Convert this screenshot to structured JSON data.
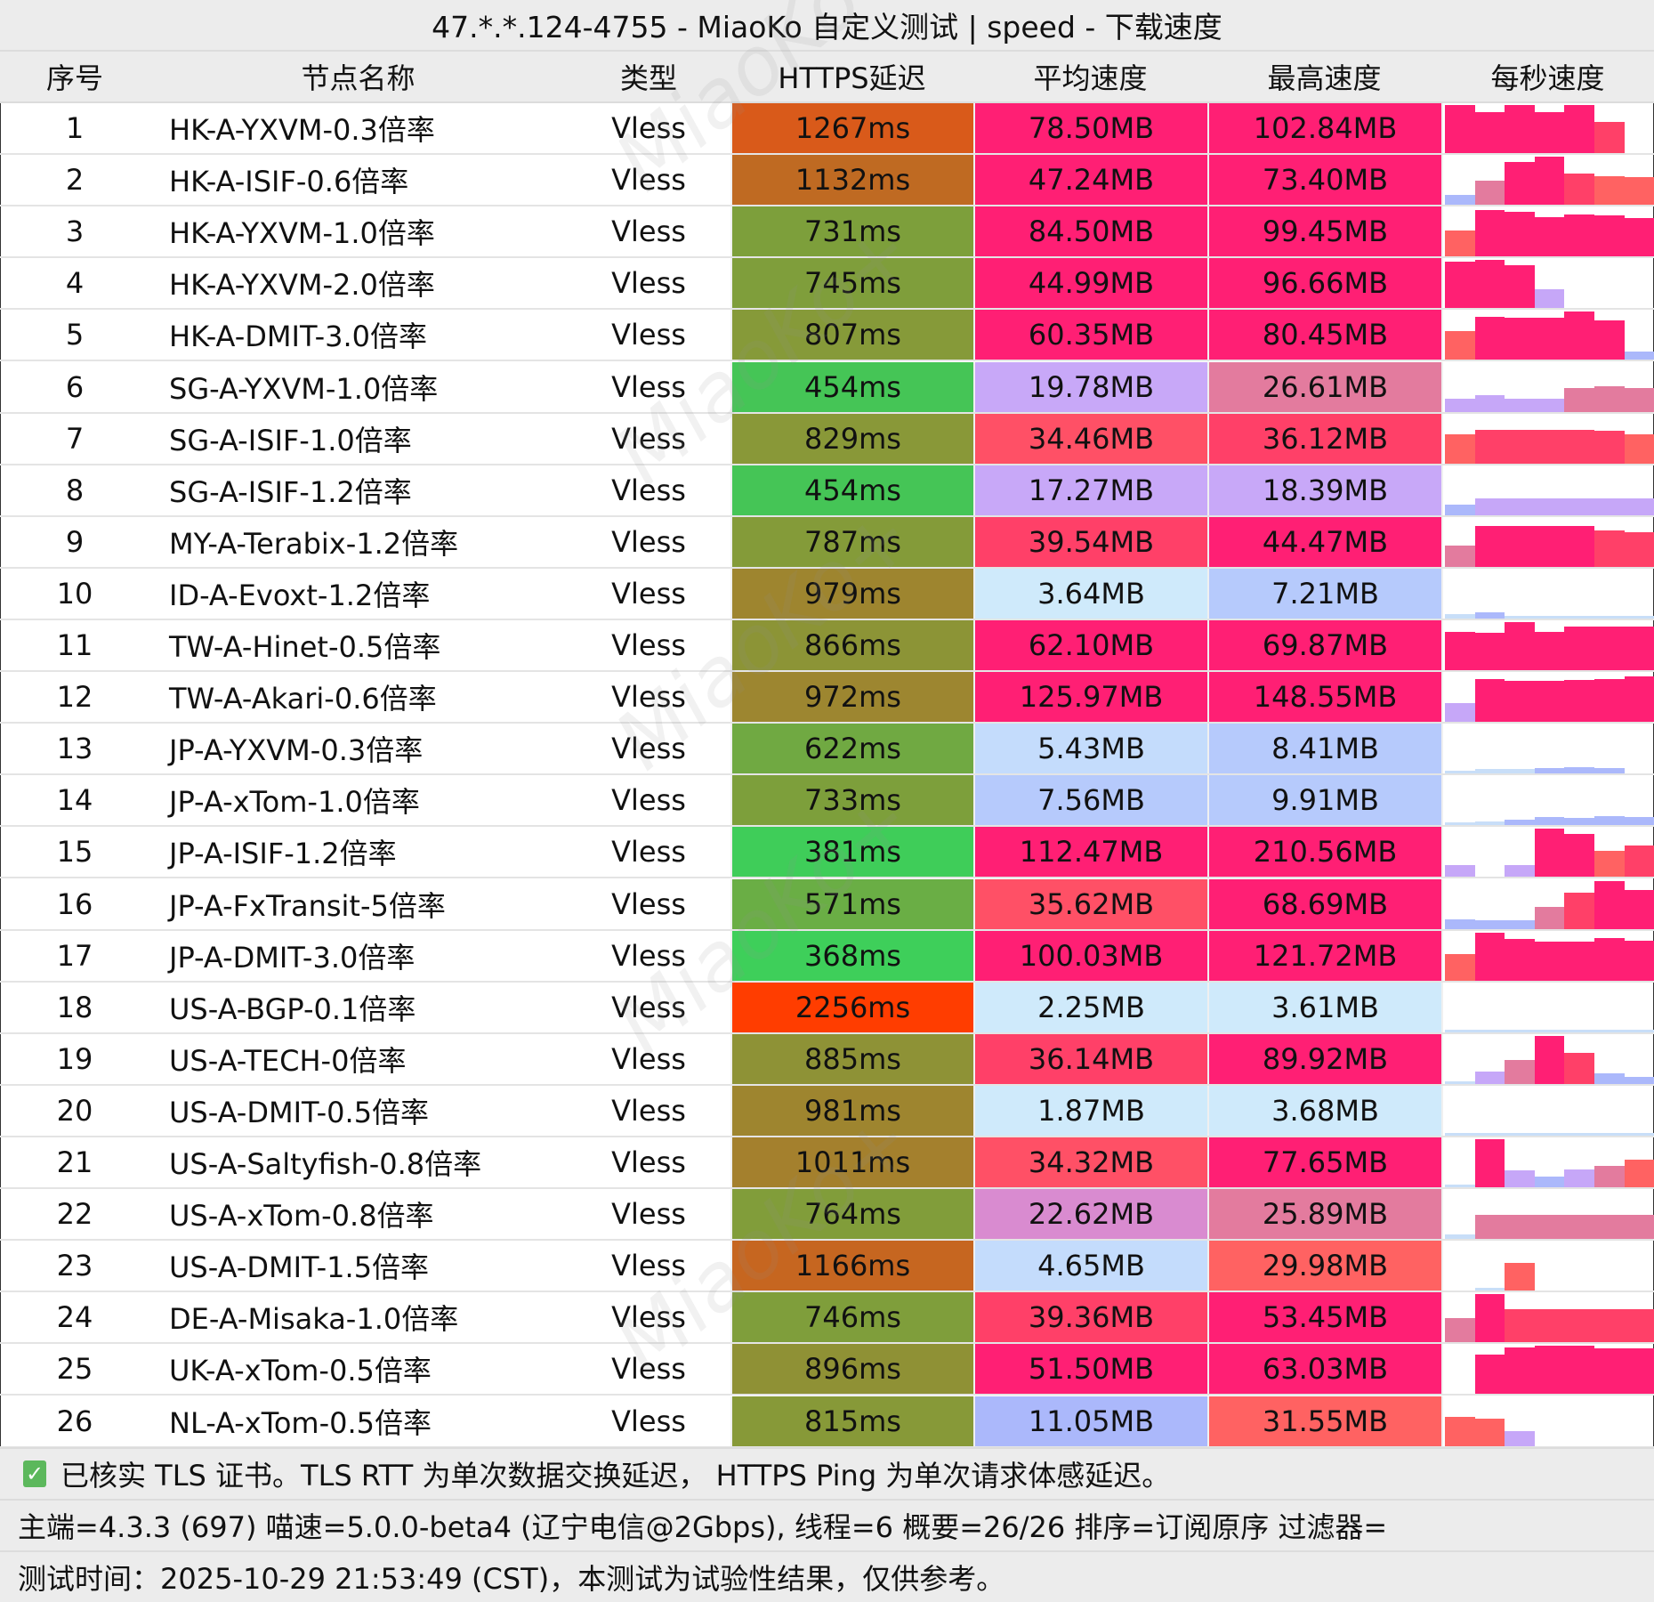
{
  "title": "47.*.*.124-4755 - MiaoKo 自定义测试 | speed - 下载速度",
  "watermark": "MiaoKo+",
  "headers": [
    "序号",
    "节点名称",
    "类型",
    "HTTPS延迟",
    "平均速度",
    "最高速度",
    "每秒速度"
  ],
  "rows": [
    {
      "idx": "1",
      "name": "HK-A-YXVM-0.3倍率",
      "type": "Vless",
      "latency": "1267ms",
      "avg": "78.50MB",
      "max": "102.84MB",
      "per_second": [
        1.0,
        0.86,
        1.0,
        0.86,
        1.0,
        0.65,
        0
      ]
    },
    {
      "idx": "2",
      "name": "HK-A-ISIF-0.6倍率",
      "type": "Vless",
      "latency": "1132ms",
      "avg": "47.24MB",
      "max": "73.40MB",
      "per_second": [
        0.2,
        0.5,
        0.9,
        1.0,
        0.65,
        0.6,
        0.58
      ]
    },
    {
      "idx": "3",
      "name": "HK-A-YXVM-1.0倍率",
      "type": "Vless",
      "latency": "731ms",
      "avg": "84.50MB",
      "max": "99.45MB",
      "per_second": [
        0.55,
        0.97,
        0.93,
        0.82,
        0.88,
        0.86,
        0.8
      ]
    },
    {
      "idx": "4",
      "name": "HK-A-YXVM-2.0倍率",
      "type": "Vless",
      "latency": "745ms",
      "avg": "44.99MB",
      "max": "96.66MB",
      "per_second": [
        0.97,
        1.0,
        0.9,
        0.4,
        0,
        0,
        0
      ]
    },
    {
      "idx": "5",
      "name": "HK-A-DMIT-3.0倍率",
      "type": "Vless",
      "latency": "807ms",
      "avg": "60.35MB",
      "max": "80.45MB",
      "per_second": [
        0.6,
        0.9,
        0.88,
        0.88,
        1.0,
        0.82,
        0.18
      ]
    },
    {
      "idx": "6",
      "name": "SG-A-YXVM-1.0倍率",
      "type": "Vless",
      "latency": "454ms",
      "avg": "19.78MB",
      "max": "26.61MB",
      "per_second": [
        0.27,
        0.35,
        0.27,
        0.27,
        0.5,
        0.52,
        0.5
      ]
    },
    {
      "idx": "7",
      "name": "SG-A-ISIF-1.0倍率",
      "type": "Vless",
      "latency": "829ms",
      "avg": "34.46MB",
      "max": "36.12MB",
      "per_second": [
        0.6,
        0.7,
        0.7,
        0.7,
        0.7,
        0.68,
        0.6
      ]
    },
    {
      "idx": "8",
      "name": "SG-A-ISIF-1.2倍率",
      "type": "Vless",
      "latency": "454ms",
      "avg": "17.27MB",
      "max": "18.39MB",
      "per_second": [
        0.22,
        0.35,
        0.35,
        0.35,
        0.35,
        0.35,
        0.35
      ]
    },
    {
      "idx": "9",
      "name": "MY-A-Terabix-1.2倍率",
      "type": "Vless",
      "latency": "787ms",
      "avg": "39.54MB",
      "max": "44.47MB",
      "per_second": [
        0.45,
        0.85,
        0.85,
        0.85,
        0.85,
        0.75,
        0.72
      ]
    },
    {
      "idx": "10",
      "name": "ID-A-Evoxt-1.2倍率",
      "type": "Vless",
      "latency": "979ms",
      "avg": "3.64MB",
      "max": "7.21MB",
      "per_second": [
        0.1,
        0.12,
        0.05,
        0.05,
        0.05,
        0.05,
        0.05
      ]
    },
    {
      "idx": "11",
      "name": "TW-A-Hinet-0.5倍率",
      "type": "Vless",
      "latency": "866ms",
      "avg": "62.10MB",
      "max": "69.87MB",
      "per_second": [
        0.8,
        0.78,
        1.0,
        0.8,
        0.9,
        0.9,
        0.9
      ]
    },
    {
      "idx": "12",
      "name": "TW-A-Akari-0.6倍率",
      "type": "Vless",
      "latency": "972ms",
      "avg": "125.97MB",
      "max": "148.55MB",
      "per_second": [
        0.4,
        0.9,
        0.85,
        0.86,
        0.88,
        0.9,
        0.95
      ]
    },
    {
      "idx": "13",
      "name": "JP-A-YXVM-0.3倍率",
      "type": "Vless",
      "latency": "622ms",
      "avg": "5.43MB",
      "max": "8.41MB",
      "per_second": [
        0.05,
        0.1,
        0.1,
        0.12,
        0.14,
        0.12,
        0
      ]
    },
    {
      "idx": "14",
      "name": "JP-A-xTom-1.0倍率",
      "type": "Vless",
      "latency": "733ms",
      "avg": "7.56MB",
      "max": "9.91MB",
      "per_second": [
        0.06,
        0.08,
        0.12,
        0.18,
        0.16,
        0.2,
        0.18
      ]
    },
    {
      "idx": "15",
      "name": "JP-A-ISIF-1.2倍率",
      "type": "Vless",
      "latency": "381ms",
      "avg": "112.47MB",
      "max": "210.56MB",
      "per_second": [
        0.25,
        0,
        0.25,
        1.0,
        0.9,
        0.55,
        0.65
      ]
    },
    {
      "idx": "16",
      "name": "JP-A-FxTransit-5倍率",
      "type": "Vless",
      "latency": "571ms",
      "avg": "35.62MB",
      "max": "68.69MB",
      "per_second": [
        0.2,
        0.18,
        0.18,
        0.45,
        0.75,
        1.0,
        0.8
      ]
    },
    {
      "idx": "17",
      "name": "JP-A-DMIT-3.0倍率",
      "type": "Vless",
      "latency": "368ms",
      "avg": "100.03MB",
      "max": "121.72MB",
      "per_second": [
        0.55,
        1.0,
        0.87,
        0.8,
        0.8,
        0.88,
        0.82
      ]
    },
    {
      "idx": "18",
      "name": "US-A-BGP-0.1倍率",
      "type": "Vless",
      "latency": "2256ms",
      "avg": "2.25MB",
      "max": "3.61MB",
      "per_second": [
        0.03,
        0.03,
        0.03,
        0.03,
        0.03,
        0.03,
        0.03
      ]
    },
    {
      "idx": "19",
      "name": "US-A-TECH-0倍率",
      "type": "Vless",
      "latency": "885ms",
      "avg": "36.14MB",
      "max": "89.92MB",
      "per_second": [
        0.03,
        0.25,
        0.5,
        1.0,
        0.65,
        0.22,
        0.15
      ]
    },
    {
      "idx": "20",
      "name": "US-A-DMIT-0.5倍率",
      "type": "Vless",
      "latency": "981ms",
      "avg": "1.87MB",
      "max": "3.68MB",
      "per_second": [
        0.05,
        0.02,
        0.02,
        0.02,
        0.02,
        0.02,
        0.02
      ]
    },
    {
      "idx": "21",
      "name": "US-A-Saltyfish-0.8倍率",
      "type": "Vless",
      "latency": "1011ms",
      "avg": "34.32MB",
      "max": "77.65MB",
      "per_second": [
        0.05,
        1.0,
        0.35,
        0.22,
        0.37,
        0.45,
        0.58
      ]
    },
    {
      "idx": "22",
      "name": "US-A-xTom-0.8倍率",
      "type": "Vless",
      "latency": "764ms",
      "avg": "22.62MB",
      "max": "25.89MB",
      "per_second": [
        0.1,
        0.5,
        0.5,
        0.5,
        0.5,
        0.5,
        0.5
      ]
    },
    {
      "idx": "23",
      "name": "US-A-DMIT-1.5倍率",
      "type": "Vless",
      "latency": "1166ms",
      "avg": "4.65MB",
      "max": "29.98MB",
      "per_second": [
        0,
        0.03,
        0.58,
        0,
        0,
        0,
        0
      ]
    },
    {
      "idx": "24",
      "name": "DE-A-Misaka-1.0倍率",
      "type": "Vless",
      "latency": "746ms",
      "avg": "39.36MB",
      "max": "53.45MB",
      "per_second": [
        0.5,
        1.0,
        0.7,
        0.7,
        0.7,
        0.7,
        0.7
      ]
    },
    {
      "idx": "25",
      "name": "UK-A-xTom-0.5倍率",
      "type": "Vless",
      "latency": "896ms",
      "avg": "51.50MB",
      "max": "63.03MB",
      "per_second": [
        0,
        0.82,
        0.97,
        1.0,
        1.0,
        0.95,
        0.95
      ]
    },
    {
      "idx": "26",
      "name": "NL-A-xTom-0.5倍率",
      "type": "Vless",
      "latency": "815ms",
      "avg": "11.05MB",
      "max": "31.55MB",
      "per_second": [
        0.6,
        0.57,
        0.3,
        0,
        0,
        0,
        0
      ]
    }
  ],
  "footer": {
    "note": "已核实 TLS 证书。TLS RTT 为单次数据交换延迟， HTTPS Ping 为单次请求体感延迟。",
    "info": "主端=4.3.3 (697) 喵速=5.0.0-beta4 (辽宁电信@2Gbps), 线程=6 概要=26/26 排序=订阅原序 过滤器=",
    "time": "测试时间：2025-10-29 21:53:49 (CST)，本测试为试验性结果，仅供参考。"
  }
}
